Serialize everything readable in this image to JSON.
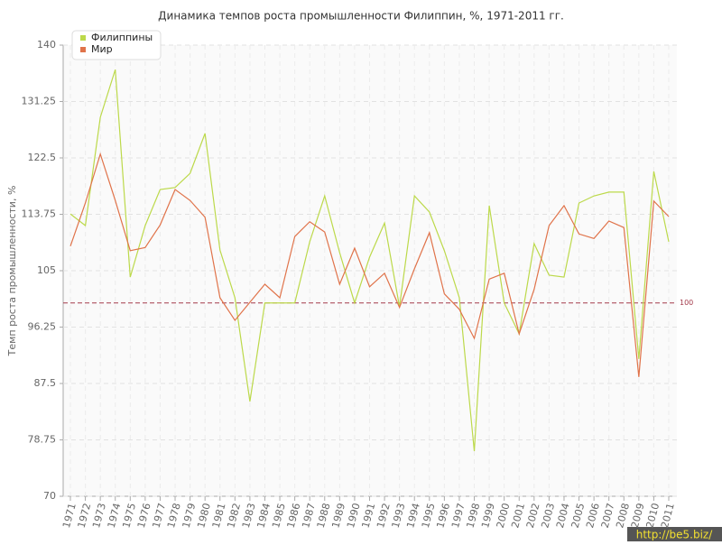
{
  "chart_data": {
    "type": "line",
    "title": "Динамика темпов роста промышленности Филиппин, %, 1971-2011 гг.",
    "y_label": "Темп роста промышленности, %",
    "categories": [
      "1971",
      "1972",
      "1973",
      "1974",
      "1975",
      "1976",
      "1977",
      "1978",
      "1979",
      "1980",
      "1981",
      "1982",
      "1983",
      "1984",
      "1985",
      "1986",
      "1987",
      "1988",
      "1989",
      "1990",
      "1991",
      "1992",
      "1993",
      "1994",
      "1995",
      "1996",
      "1997",
      "1998",
      "1999",
      "2000",
      "2001",
      "2002",
      "2003",
      "2004",
      "2005",
      "2006",
      "2007",
      "2008",
      "2009",
      "2010",
      "2011"
    ],
    "series": [
      {
        "name": "Филиппины",
        "color": "#bcd94a",
        "values": [
          113.8,
          112,
          128.8,
          136.2,
          104,
          112,
          117.6,
          117.9,
          120.1,
          126.3,
          108.2,
          100.8,
          84.7,
          100,
          100,
          100,
          109.5,
          116.6,
          107.8,
          100,
          107.1,
          112.4,
          99.4,
          116.6,
          114.1,
          108.1,
          100.8,
          77,
          115.1,
          100,
          95.2,
          109.2,
          104.3,
          104,
          115.5,
          116.6,
          117.2,
          117.2,
          91.3,
          120.4,
          109.5
        ]
      },
      {
        "name": "Мир",
        "color": "#e0734a",
        "values": [
          108.8,
          115.5,
          123.1,
          115.9,
          108.1,
          108.6,
          112.1,
          117.6,
          115.9,
          113.3,
          100.8,
          97.3,
          100.1,
          102.9,
          100.8,
          110.3,
          112.6,
          111,
          102.9,
          108.5,
          102.5,
          104.6,
          99.3,
          105.3,
          110.9,
          101.4,
          99,
          94.5,
          103.7,
          104.6,
          95.2,
          102.1,
          112,
          115.1,
          110.7,
          110,
          112.7,
          111.7,
          88.5,
          115.8,
          113.4
        ]
      }
    ],
    "ylim": [
      70,
      140
    ],
    "yticks": [
      70,
      78.75,
      87.5,
      96.25,
      105,
      113.75,
      122.5,
      131.25,
      140
    ],
    "reference_line": {
      "value": 100,
      "color": "#a33a4a"
    },
    "grid": true,
    "legend": "top-left",
    "watermark": "http://be5.biz/"
  }
}
